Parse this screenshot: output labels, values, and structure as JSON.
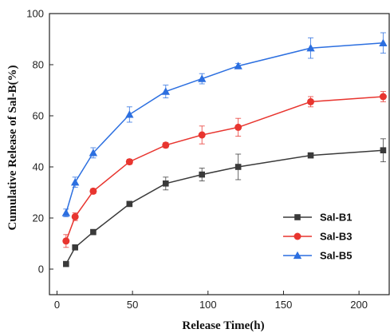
{
  "chart_data": {
    "type": "line",
    "title": "",
    "xlabel": "Release Time(h)",
    "ylabel": "Cumulative Release of Sal-B(%)",
    "xlim": [
      -5,
      220
    ],
    "ylim": [
      -10,
      100
    ],
    "xticks": [
      0,
      50,
      100,
      150,
      200
    ],
    "yticks": [
      0,
      20,
      40,
      60,
      80,
      100
    ],
    "grid": false,
    "legend_position": "bottom-right",
    "x": [
      6,
      12,
      24,
      48,
      72,
      96,
      120,
      168,
      216
    ],
    "series": [
      {
        "name": "Sal-B1",
        "color": "#3a3a3a",
        "marker": "square",
        "values": [
          2,
          8.5,
          14.5,
          25.5,
          33.5,
          37,
          40,
          44.5,
          46.5
        ],
        "errors": [
          0.5,
          1,
          1,
          1,
          2.5,
          2.5,
          5,
          1,
          4.5
        ]
      },
      {
        "name": "Sal-B3",
        "color": "#e8352f",
        "marker": "circle",
        "values": [
          11,
          20.5,
          30.5,
          42,
          48.5,
          52.5,
          55.5,
          65.5,
          67.5
        ],
        "errors": [
          2.5,
          1.5,
          1,
          1,
          1,
          3.5,
          3.5,
          2,
          2
        ]
      },
      {
        "name": "Sal-B5",
        "color": "#2c6fe0",
        "marker": "triangle",
        "values": [
          22,
          34,
          45.5,
          60.5,
          69.5,
          74.5,
          79.5,
          86.5,
          88.5
        ],
        "errors": [
          1.5,
          2,
          2,
          3,
          2.5,
          2,
          1,
          4,
          4
        ]
      }
    ]
  }
}
